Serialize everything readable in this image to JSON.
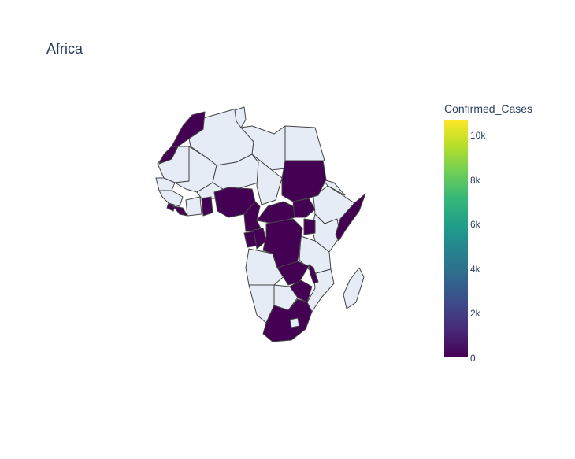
{
  "title": "Africa",
  "colorbar": {
    "title": "Confirmed_Cases",
    "colorscale": "Viridis",
    "range": [
      0,
      10600
    ],
    "ticks": [
      {
        "value": 0,
        "label": "0"
      },
      {
        "value": 2000,
        "label": "2k"
      },
      {
        "value": 4000,
        "label": "4k"
      },
      {
        "value": 6000,
        "label": "6k"
      },
      {
        "value": 8000,
        "label": "8k"
      },
      {
        "value": 10000,
        "label": "10k"
      }
    ]
  },
  "colors": {
    "no_data": "#e5ecf6",
    "low": "#440154",
    "border": "#444444",
    "text": "#2a3f5f"
  },
  "countries_with_data": [
    "Morocco",
    "Western Sahara",
    "Sierra Leone",
    "Liberia",
    "Ghana",
    "Nigeria",
    "Cameroon",
    "Central African Republic",
    "Sudan",
    "Gabon",
    "Republic of the Congo",
    "Democratic Republic of the Congo",
    "Uganda",
    "Zambia",
    "Malawi",
    "Zimbabwe",
    "Somalia",
    "South Africa",
    "Lesotho",
    "Eswatini"
  ]
}
